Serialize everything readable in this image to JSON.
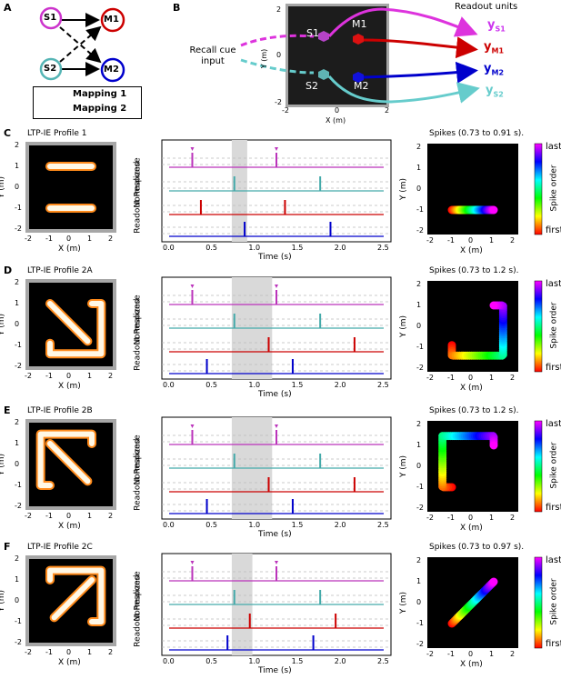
{
  "panel_letters": [
    "A",
    "B",
    "C",
    "D",
    "E",
    "F"
  ],
  "panel_a": {
    "nodes": {
      "s1": "S1",
      "s2": "S2",
      "m1": "M1",
      "m2": "M2"
    },
    "legend": {
      "solid": "Mapping 1",
      "dashed": "Mapping 2"
    },
    "colors": {
      "s1": "#cc33cc",
      "s2": "#55b5b5",
      "m1": "#cc0000",
      "m2": "#0000cc"
    }
  },
  "panel_b": {
    "recall_cue": "Recall cue input",
    "readout_title": "Readout units",
    "readouts": [
      {
        "base": "y",
        "sub": "S1",
        "color": "#cc33ee"
      },
      {
        "base": "y",
        "sub": "M1",
        "color": "#cc0000"
      },
      {
        "base": "y",
        "sub": "M2",
        "color": "#0000cc"
      },
      {
        "base": "y",
        "sub": "S2",
        "color": "#66cccc"
      }
    ],
    "env_labels": {
      "s1": "S1",
      "m1": "M1",
      "s2": "S2",
      "m2": "M2"
    },
    "xlabel": "X (m)",
    "ylabel": "Y (m)",
    "xticks": [
      "-2",
      "0",
      "2"
    ],
    "yticks": [
      "2",
      "0",
      "-2"
    ]
  },
  "rows": [
    {
      "letter": "C",
      "profile": "LTP-IE Profile 1",
      "spikes_title": "Spikes (0.73 to 0.91 s).",
      "win": [
        0.73,
        0.91
      ],
      "peaks": {
        "s1": [
          0.27,
          1.25
        ],
        "s2": [
          0.76,
          1.76
        ],
        "m1": [
          0.37,
          1.35
        ],
        "m2": [
          0.88,
          1.88
        ]
      }
    },
    {
      "letter": "D",
      "profile": "LTP-IE Profile 2A",
      "spikes_title": "Spikes (0.73 to 1.2 s).",
      "win": [
        0.73,
        1.2
      ],
      "peaks": {
        "s1": [
          0.27,
          1.25
        ],
        "s2": [
          0.76,
          1.76
        ],
        "m1": [
          1.16,
          2.16
        ],
        "m2": [
          0.44,
          1.44
        ]
      }
    },
    {
      "letter": "E",
      "profile": "LTP-IE Profile 2B",
      "spikes_title": "Spikes (0.73 to 1.2 s).",
      "win": [
        0.73,
        1.2
      ],
      "peaks": {
        "s1": [
          0.27,
          1.25
        ],
        "s2": [
          0.76,
          1.76
        ],
        "m1": [
          1.16,
          2.16
        ],
        "m2": [
          0.44,
          1.44
        ]
      }
    },
    {
      "letter": "F",
      "profile": "LTP-IE Profile 2C",
      "spikes_title": "Spikes (0.73 to 0.97 s).",
      "win": [
        0.73,
        0.97
      ],
      "peaks": {
        "s1": [
          0.27,
          1.25
        ],
        "s2": [
          0.76,
          1.76
        ],
        "m1": [
          0.94,
          1.94
        ],
        "m2": [
          0.68,
          1.68
        ]
      }
    }
  ],
  "axes": {
    "xy_xlabel": "X (m)",
    "xy_ylabel": "Y (m)",
    "xy_ticks": [
      "-2",
      "-1",
      "0",
      "1",
      "2"
    ],
    "resp_xlabel": "Time (s)",
    "resp_ylabel_1": "Normalized",
    "resp_ylabel_2": "Readout Response",
    "resp_xticks": [
      "0.0",
      "0.5",
      "1.0",
      "1.5",
      "2.0",
      "2.5"
    ],
    "colorbar_top": "last",
    "colorbar_bottom": "first",
    "colorbar_label": "Spike order"
  },
  "chart_data": [
    {
      "type": "line",
      "title": "",
      "xlabel": "Time (s)",
      "ylabel": "Normalized Readout Response",
      "xlim": [
        0,
        2.5
      ],
      "series": [
        {
          "name": "S1",
          "peaks": [
            0.27,
            1.25
          ]
        },
        {
          "name": "S2",
          "peaks": [
            0.76,
            1.76
          ]
        },
        {
          "name": "M1",
          "peaks": [
            0.37,
            1.35
          ]
        },
        {
          "name": "M2",
          "peaks": [
            0.88,
            1.88
          ]
        }
      ]
    },
    {
      "type": "line",
      "title": "",
      "xlabel": "Time (s)",
      "ylabel": "Normalized Readout Response",
      "xlim": [
        0,
        2.5
      ],
      "series": [
        {
          "name": "S1",
          "peaks": [
            0.27,
            1.25
          ]
        },
        {
          "name": "S2",
          "peaks": [
            0.76,
            1.76
          ]
        },
        {
          "name": "M1",
          "peaks": [
            1.16,
            2.16
          ]
        },
        {
          "name": "M2",
          "peaks": [
            0.44,
            1.44
          ]
        }
      ]
    },
    {
      "type": "line",
      "title": "",
      "xlabel": "Time (s)",
      "ylabel": "Normalized Readout Response",
      "xlim": [
        0,
        2.5
      ],
      "series": [
        {
          "name": "S1",
          "peaks": [
            0.27,
            1.25
          ]
        },
        {
          "name": "S2",
          "peaks": [
            0.76,
            1.76
          ]
        },
        {
          "name": "M1",
          "peaks": [
            1.16,
            2.16
          ]
        },
        {
          "name": "M2",
          "peaks": [
            0.44,
            1.44
          ]
        }
      ]
    },
    {
      "type": "line",
      "title": "",
      "xlabel": "Time (s)",
      "ylabel": "Normalized Readout Response",
      "xlim": [
        0,
        2.5
      ],
      "series": [
        {
          "name": "S1",
          "peaks": [
            0.27,
            1.25
          ]
        },
        {
          "name": "S2",
          "peaks": [
            0.76,
            1.76
          ]
        },
        {
          "name": "M1",
          "peaks": [
            0.94,
            1.94
          ]
        },
        {
          "name": "M2",
          "peaks": [
            0.68,
            1.68
          ]
        }
      ]
    }
  ]
}
